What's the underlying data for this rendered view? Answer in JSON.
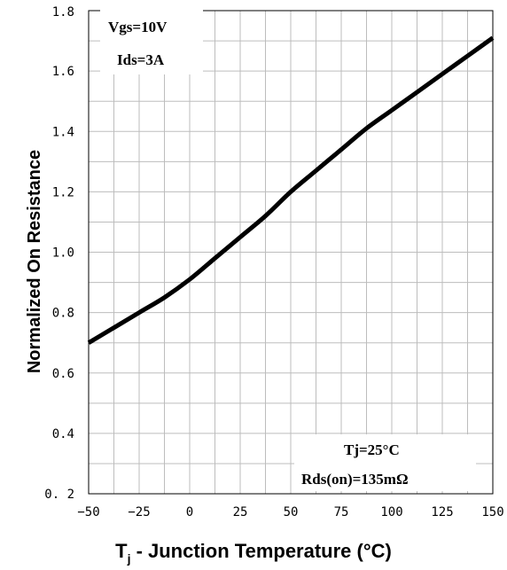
{
  "chart_data": {
    "type": "line",
    "xlabel": "T",
    "xlabel_sub": "j",
    "xlabel_rest": " - Junction Temperature (°C)",
    "ylabel": "Normalized On Resistance",
    "xlim": [
      -50,
      150
    ],
    "ylim": [
      0.2,
      1.8
    ],
    "x_ticks": [
      "−50",
      "−25",
      "0",
      "25",
      "50",
      "75",
      "100",
      "125",
      "150"
    ],
    "x_tick_values": [
      -50,
      -25,
      0,
      25,
      50,
      75,
      100,
      125,
      150
    ],
    "y_ticks": [
      "0. 2",
      "0.4",
      "0.6",
      "0.8",
      "1.0",
      "1.2",
      "1.4",
      "1.6",
      "1.8"
    ],
    "y_tick_values": [
      0.2,
      0.4,
      0.6,
      0.8,
      1.0,
      1.2,
      1.4,
      1.6,
      1.8
    ],
    "grid": true,
    "annotations": {
      "top_left": [
        "Vgs=10V",
        "Ids=3A"
      ],
      "bottom_right": [
        "Tj=25°C",
        "Rds(on)=135mΩ"
      ]
    },
    "series": [
      {
        "x": [
          -50,
          -37.5,
          -25,
          -12.5,
          0,
          12.5,
          25,
          37.5,
          50,
          62.5,
          75,
          87.5,
          100,
          112.5,
          125,
          137.5,
          150
        ],
        "y": [
          0.7,
          0.75,
          0.8,
          0.85,
          0.91,
          0.98,
          1.05,
          1.12,
          1.2,
          1.27,
          1.34,
          1.41,
          1.47,
          1.53,
          1.59,
          1.65,
          1.71
        ]
      }
    ]
  }
}
